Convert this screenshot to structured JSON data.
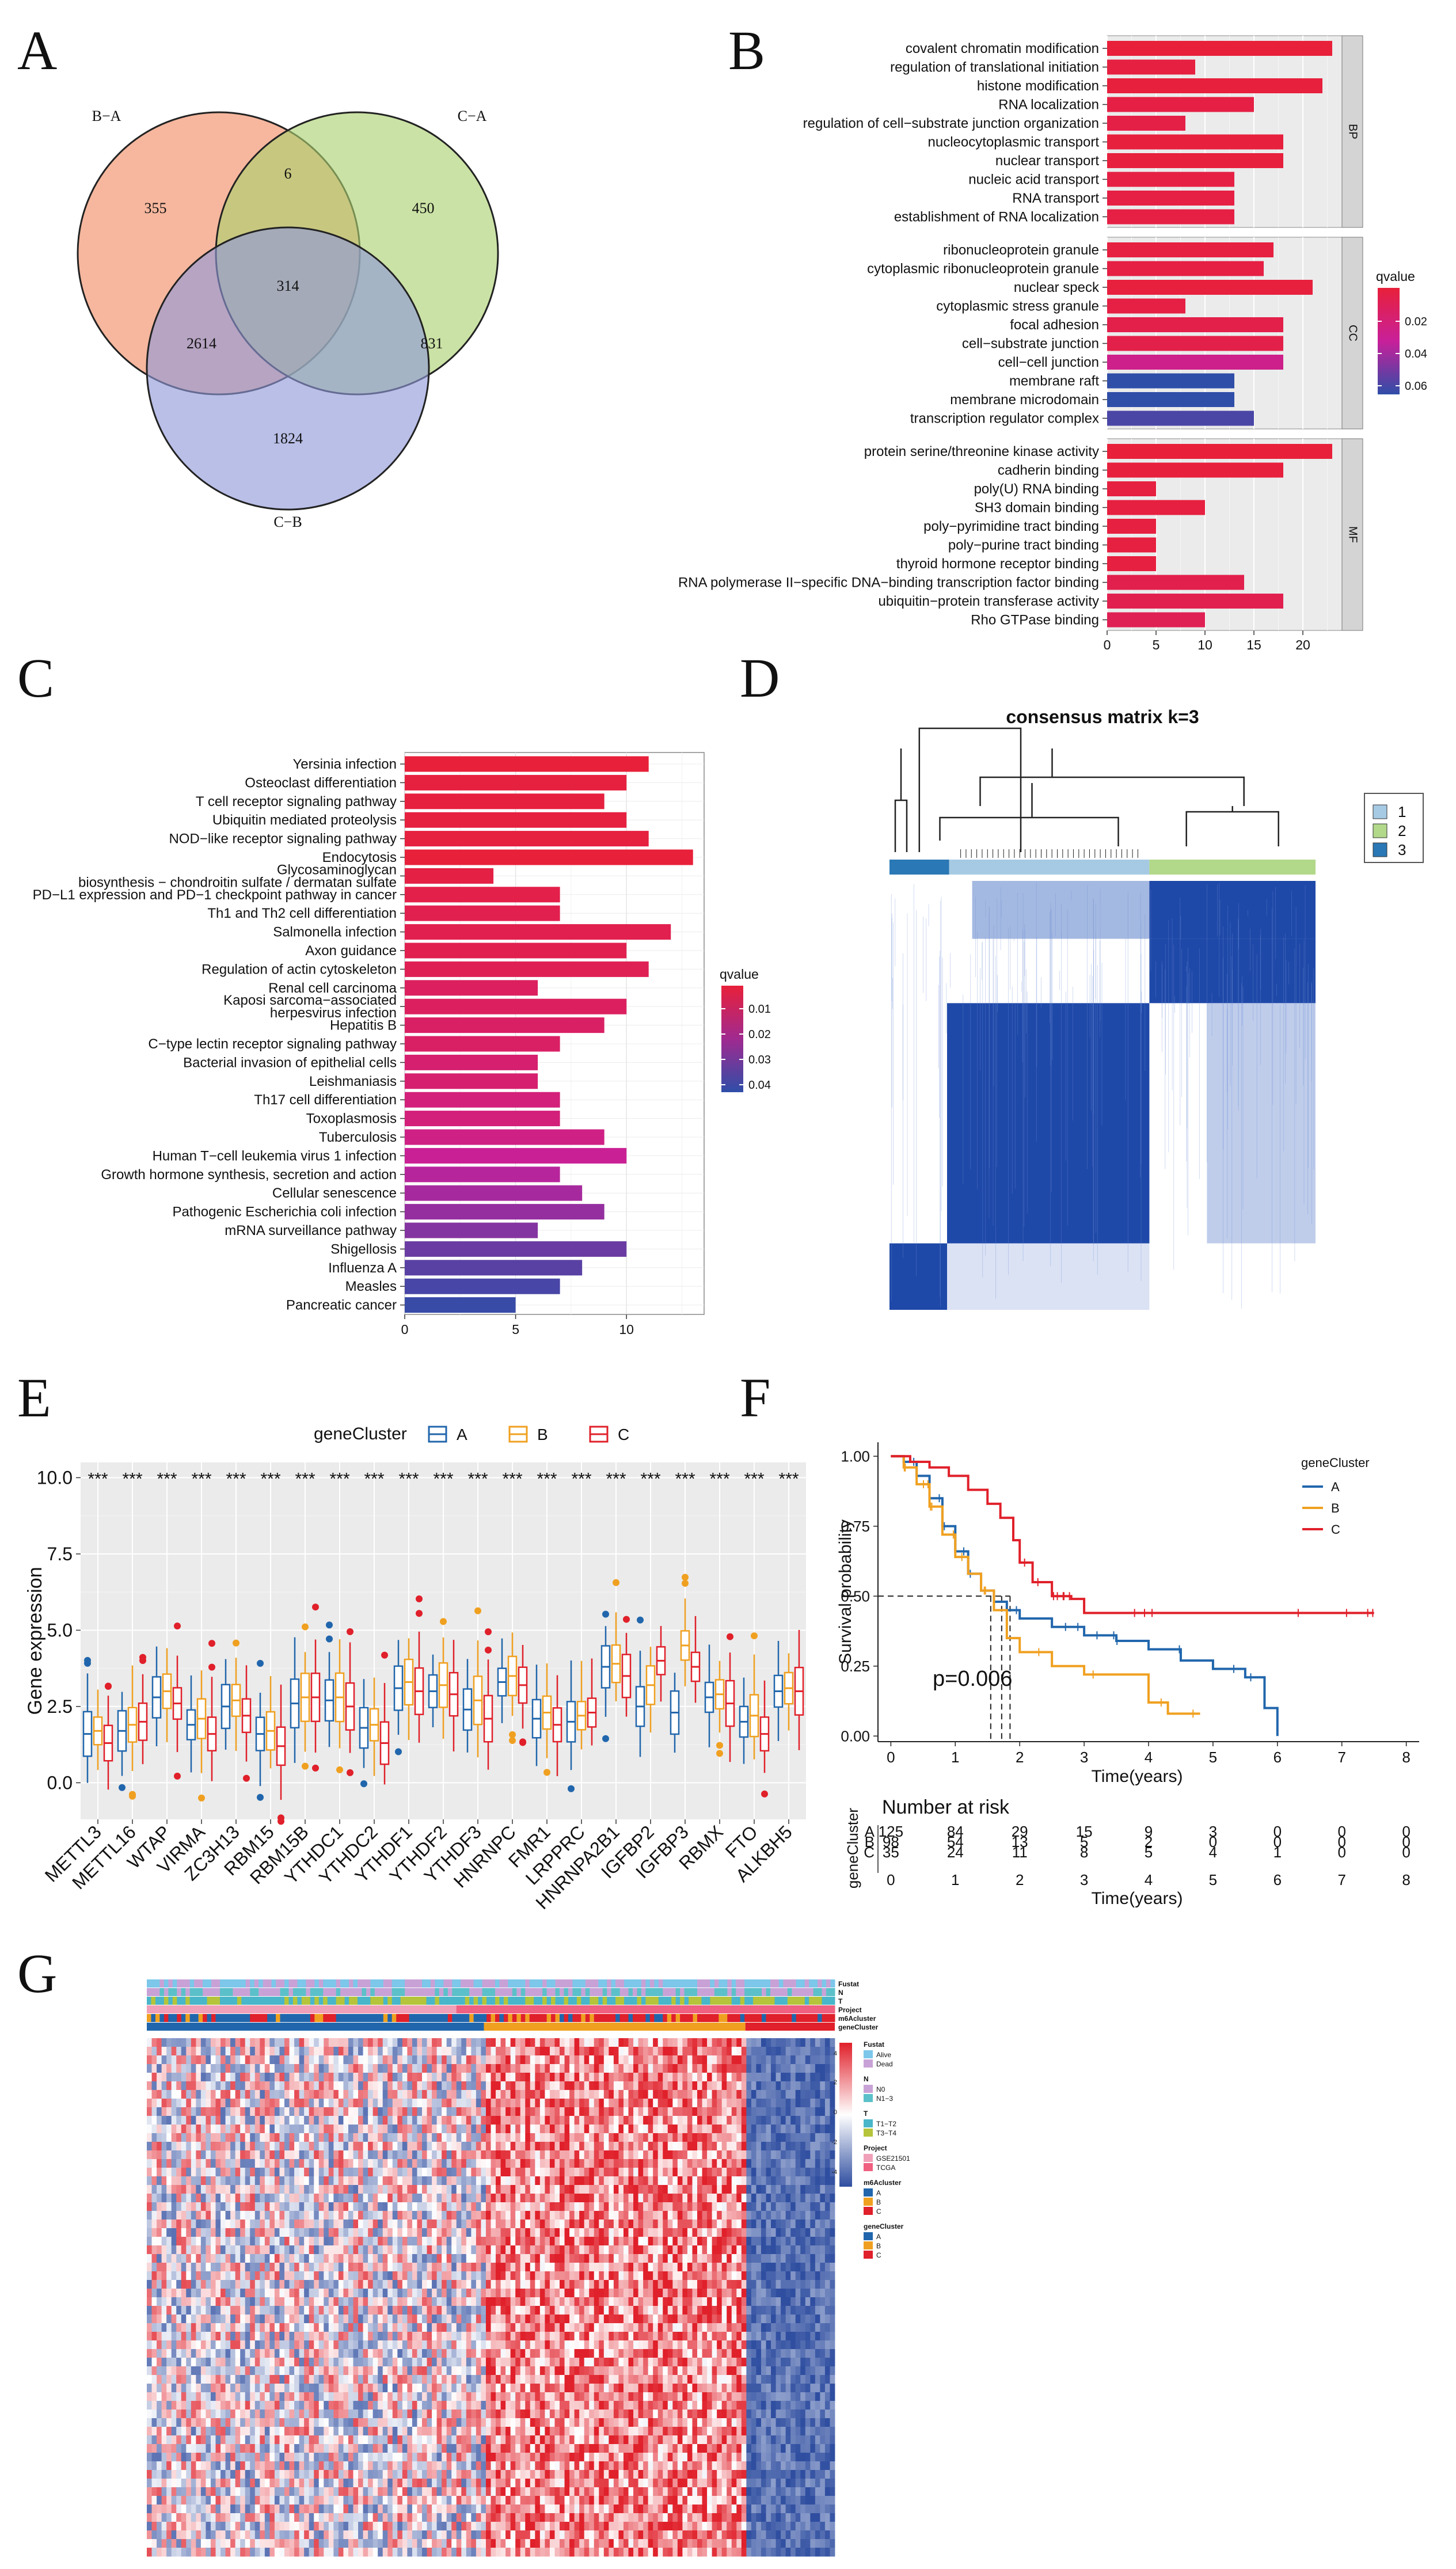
{
  "panel_labels": [
    "A",
    "B",
    "C",
    "D",
    "E",
    "F",
    "G"
  ],
  "chart_data": [
    {
      "id": "A",
      "type": "venn",
      "sets": [
        {
          "name": "B−A",
          "color": "#f08a62"
        },
        {
          "name": "C−A",
          "color": "#a9d16e"
        },
        {
          "name": "C−B",
          "color": "#8e97d8"
        }
      ],
      "regions": [
        {
          "sets": [
            "B-A"
          ],
          "value": 355
        },
        {
          "sets": [
            "C-A"
          ],
          "value": 450
        },
        {
          "sets": [
            "C-B"
          ],
          "value": 1824
        },
        {
          "sets": [
            "B-A",
            "C-A"
          ],
          "value": 6
        },
        {
          "sets": [
            "B-A",
            "C-B"
          ],
          "value": 2614
        },
        {
          "sets": [
            "C-A",
            "C-B"
          ],
          "value": 831
        },
        {
          "sets": [
            "B-A",
            "C-A",
            "C-B"
          ],
          "value": 314
        }
      ]
    },
    {
      "id": "B",
      "type": "bar",
      "orientation": "horizontal",
      "xlim": [
        0,
        24
      ],
      "xticks": [
        "0",
        "5",
        "10",
        "15",
        "20"
      ],
      "legend": {
        "title": "qvalue",
        "ticks": [
          "0.02",
          "0.04",
          "0.06"
        ],
        "position": "right"
      },
      "facets": [
        {
          "name": "BP",
          "terms": [
            "covalent chromatin modification",
            "regulation of translational initiation",
            "histone modification",
            "RNA localization",
            "regulation of cell−substrate junction organization",
            "nucleocytoplasmic transport",
            "nuclear transport",
            "nucleic acid transport",
            "RNA transport",
            "establishment of RNA localization"
          ],
          "values": [
            23,
            9,
            22,
            15,
            8,
            18,
            18,
            13,
            13,
            13
          ],
          "qvalues": [
            0.01,
            0.012,
            0.011,
            0.013,
            0.014,
            0.011,
            0.011,
            0.013,
            0.013,
            0.013
          ]
        },
        {
          "name": "CC",
          "terms": [
            "ribonucleoprotein granule",
            "cytoplasmic ribonucleoprotein granule",
            "nuclear speck",
            "cytoplasmic stress granule",
            "focal adhesion",
            "cell−substrate junction",
            "cell−cell junction",
            "membrane raft",
            "membrane microdomain",
            "transcription regulator complex"
          ],
          "values": [
            17,
            16,
            21,
            8,
            18,
            18,
            18,
            13,
            13,
            15
          ],
          "qvalues": [
            0.012,
            0.013,
            0.011,
            0.013,
            0.015,
            0.015,
            0.035,
            0.07,
            0.07,
            0.065
          ]
        },
        {
          "name": "MF",
          "terms": [
            "protein serine/threonine kinase activity",
            "cadherin binding",
            "poly(U) RNA binding",
            "SH3 domain binding",
            "poly−pyrimidine tract binding",
            "poly−purine tract binding",
            "thyroid hormone receptor binding",
            "RNA polymerase II−specific DNA−binding transcription factor binding",
            "ubiquitin−protein transferase activity",
            "Rho GTPase binding"
          ],
          "values": [
            23,
            18,
            5,
            10,
            5,
            5,
            5,
            14,
            18,
            10
          ],
          "qvalues": [
            0.01,
            0.011,
            0.012,
            0.012,
            0.012,
            0.012,
            0.012,
            0.016,
            0.017,
            0.018
          ]
        }
      ]
    },
    {
      "id": "C",
      "type": "bar",
      "orientation": "horizontal",
      "xlim": [
        0,
        13.5
      ],
      "xticks": [
        "0",
        "5",
        "10"
      ],
      "legend": {
        "title": "qvalue",
        "ticks": [
          "0.01",
          "0.02",
          "0.03",
          "0.04"
        ],
        "position": "right"
      },
      "terms": [
        "Yersinia infection",
        "Osteoclast differentiation",
        "T cell receptor signaling pathway",
        "Ubiquitin mediated proteolysis",
        "NOD−like receptor signaling pathway",
        "Endocytosis",
        "Glycosaminoglycan biosynthesis − chondroitin sulfate / dermatan sulfate",
        "PD−L1 expression and PD−1 checkpoint pathway in cancer",
        "Th1 and Th2 cell differentiation",
        "Salmonella infection",
        "Axon guidance",
        "Regulation of actin cytoskeleton",
        "Renal cell carcinoma",
        "Kaposi sarcoma−associated herpesvirus infection",
        "Hepatitis B",
        "C−type lectin receptor signaling pathway",
        "Bacterial invasion of epithelial cells",
        "Leishmaniasis",
        "Th17 cell differentiation",
        "Toxoplasmosis",
        "Tuberculosis",
        "Human T−cell leukemia virus 1 infection",
        "Growth hormone synthesis, secretion and action",
        "Cellular senescence",
        "Pathogenic Escherichia coli infection",
        "mRNA surveillance pathway",
        "Shigellosis",
        "Influenza A",
        "Measles",
        "Pancreatic cancer"
      ],
      "labels_line1": [
        "Yersinia infection",
        "Osteoclast differentiation",
        "T cell receptor signaling pathway",
        "Ubiquitin mediated proteolysis",
        "NOD−like receptor signaling pathway",
        "Endocytosis",
        "Glycosaminoglycan",
        "PD−L1 expression and PD−1 checkpoint pathway in cancer",
        "Th1 and Th2 cell differentiation",
        "Salmonella infection",
        "Axon guidance",
        "Regulation of actin cytoskeleton",
        "Renal cell carcinoma",
        "Kaposi sarcoma−associated",
        "Hepatitis B",
        "C−type lectin receptor signaling pathway",
        "Bacterial invasion of epithelial cells",
        "Leishmaniasis",
        "Th17 cell differentiation",
        "Toxoplasmosis",
        "Tuberculosis",
        "Human T−cell leukemia virus 1 infection",
        "Growth hormone synthesis, secretion and action",
        "Cellular senescence",
        "Pathogenic Escherichia coli infection",
        "mRNA surveillance pathway",
        "Shigellosis",
        "Influenza A",
        "Measles",
        "Pancreatic cancer"
      ],
      "labels_line2": [
        "",
        "",
        "",
        "",
        "",
        "",
        "biosynthesis − chondroitin sulfate / dermatan sulfate",
        "",
        "",
        "",
        "",
        "",
        "",
        "herpesvirus infection",
        "",
        "",
        "",
        "",
        "",
        "",
        "",
        "",
        "",
        "",
        "",
        "",
        "",
        "",
        "",
        ""
      ],
      "values": [
        11,
        10,
        9,
        10,
        11,
        13,
        4,
        7,
        7,
        12,
        10,
        11,
        6,
        10,
        9,
        7,
        6,
        6,
        7,
        7,
        9,
        10,
        7,
        8,
        9,
        6,
        10,
        8,
        7,
        5
      ],
      "qvalues": [
        0.008,
        0.009,
        0.009,
        0.009,
        0.009,
        0.008,
        0.01,
        0.011,
        0.012,
        0.012,
        0.012,
        0.013,
        0.015,
        0.015,
        0.016,
        0.016,
        0.018,
        0.018,
        0.02,
        0.02,
        0.022,
        0.025,
        0.028,
        0.03,
        0.032,
        0.034,
        0.037,
        0.039,
        0.041,
        0.043
      ]
    },
    {
      "id": "D",
      "type": "heatmap",
      "title": "consensus matrix k=3",
      "legend": [
        {
          "label": "1",
          "color": "#a6cae3"
        },
        {
          "label": "2",
          "color": "#b2d88a"
        },
        {
          "label": "3",
          "color": "#2a78b5"
        }
      ],
      "cluster_fractions": [
        {
          "cluster": "3",
          "fraction": 0.14
        },
        {
          "cluster": "1",
          "fraction": 0.47
        },
        {
          "cluster": "2",
          "fraction": 0.39
        }
      ]
    },
    {
      "id": "E",
      "type": "box",
      "legend_title": "geneCluster",
      "groups": [
        {
          "name": "A",
          "color": "#2166ac"
        },
        {
          "name": "B",
          "color": "#f0a020"
        },
        {
          "name": "C",
          "color": "#e0202a"
        }
      ],
      "ylabel": "Gene expression",
      "ylim": [
        -1.2,
        10.5
      ],
      "yticks": [
        "0.0",
        "2.5",
        "5.0",
        "7.5",
        "10.0"
      ],
      "significance": "***",
      "categories": [
        "METTL3",
        "METTL16",
        "WTAP",
        "VIRMA",
        "ZC3H13",
        "RBM15",
        "RBM15B",
        "YTHDC1",
        "YTHDC2",
        "YTHDF1",
        "YTHDF2",
        "YTHDF3",
        "HNRNPC",
        "FMR1",
        "LRPPRC",
        "HNRNPA2B1",
        "IGFBP2",
        "IGFBP3",
        "RBMX",
        "FTO",
        "ALKBH5"
      ],
      "medians": {
        "A": [
          1.6,
          1.7,
          2.8,
          1.9,
          2.5,
          1.6,
          2.6,
          2.7,
          1.8,
          3.1,
          3.0,
          2.4,
          3.3,
          2.1,
          2.0,
          3.8,
          2.5,
          2.3,
          2.8,
          2.0,
          3.0
        ],
        "B": [
          1.7,
          1.9,
          3.0,
          2.1,
          2.7,
          1.7,
          2.8,
          2.8,
          1.9,
          3.3,
          3.2,
          2.7,
          3.5,
          2.3,
          2.2,
          3.9,
          3.2,
          4.5,
          2.9,
          2.2,
          3.1
        ],
        "C": [
          1.3,
          2.0,
          2.6,
          1.6,
          2.2,
          1.2,
          2.8,
          2.5,
          1.3,
          3.0,
          2.9,
          2.1,
          3.2,
          1.9,
          2.3,
          3.5,
          4.0,
          3.8,
          2.6,
          1.6,
          3.0
        ]
      }
    },
    {
      "id": "F",
      "type": "line",
      "subtype": "kaplan-meier",
      "legend_title": "geneCluster",
      "ylabel": "Survival probability",
      "xlabel": "Time(years)",
      "xlim": [
        -0.2,
        8.2
      ],
      "ylim": [
        -0.02,
        1.05
      ],
      "xticks": [
        "0",
        "1",
        "2",
        "3",
        "4",
        "5",
        "6",
        "7",
        "8"
      ],
      "yticks": [
        "0.00",
        "0.25",
        "0.50",
        "0.75",
        "1.00"
      ],
      "pvalue": "p=0.006",
      "series": [
        {
          "name": "A",
          "color": "#2166ac",
          "x": [
            0,
            0.2,
            0.4,
            0.6,
            0.8,
            1.0,
            1.2,
            1.4,
            1.6,
            1.8,
            2.0,
            2.5,
            3.0,
            3.5,
            4.0,
            4.5,
            5.0,
            5.5,
            5.8,
            6.0
          ],
          "y": [
            1.0,
            0.98,
            0.93,
            0.85,
            0.75,
            0.66,
            0.58,
            0.52,
            0.48,
            0.45,
            0.42,
            0.39,
            0.36,
            0.34,
            0.31,
            0.27,
            0.24,
            0.21,
            0.1,
            0.0
          ]
        },
        {
          "name": "B",
          "color": "#f0a020",
          "x": [
            0,
            0.2,
            0.4,
            0.6,
            0.8,
            1.0,
            1.2,
            1.4,
            1.6,
            1.8,
            2.0,
            2.5,
            3.0,
            3.5,
            4.0,
            4.3,
            4.8
          ],
          "y": [
            1.0,
            0.96,
            0.9,
            0.82,
            0.72,
            0.64,
            0.58,
            0.52,
            0.45,
            0.35,
            0.3,
            0.25,
            0.22,
            0.22,
            0.12,
            0.08,
            0.08
          ]
        },
        {
          "name": "C",
          "color": "#e0202a",
          "x": [
            0,
            0.3,
            0.6,
            0.9,
            1.2,
            1.5,
            1.7,
            1.9,
            2.0,
            2.2,
            2.5,
            2.8,
            3.0,
            4.0,
            5.0,
            6.0,
            7.0,
            7.5
          ],
          "y": [
            1.0,
            0.98,
            0.96,
            0.93,
            0.88,
            0.83,
            0.78,
            0.7,
            0.62,
            0.55,
            0.5,
            0.49,
            0.44,
            0.44,
            0.44,
            0.44,
            0.44,
            0.44
          ]
        }
      ],
      "risk_table": {
        "title": "Number at risk",
        "ylabel": "geneCluster",
        "xlabel": "Time(years)",
        "rows": [
          {
            "name": "A",
            "color": "#2166ac",
            "counts": [
              "125",
              "84",
              "29",
              "15",
              "9",
              "3",
              "0",
              "0",
              "0"
            ]
          },
          {
            "name": "B",
            "color": "#f0a020",
            "counts": [
              "98",
              "54",
              "13",
              "5",
              "2",
              "0",
              "0",
              "0",
              "0"
            ]
          },
          {
            "name": "C",
            "color": "#e0202a",
            "counts": [
              "35",
              "24",
              "11",
              "8",
              "5",
              "4",
              "1",
              "0",
              "0"
            ]
          }
        ]
      }
    },
    {
      "id": "G",
      "type": "heatmap",
      "annotation_tracks": [
        "Fustat",
        "N",
        "T",
        "Project",
        "m6Acluster",
        "geneCluster"
      ],
      "scale_ticks": [
        "4",
        "2",
        "0",
        "-2",
        "-4"
      ],
      "scale_colors": [
        "#e0202a",
        "#ffffff",
        "#2f4ea0"
      ],
      "cluster_fractions": [
        {
          "cluster": "A",
          "fraction": 0.49
        },
        {
          "cluster": "B",
          "fraction": 0.38
        },
        {
          "cluster": "C",
          "fraction": 0.13
        }
      ],
      "legends": [
        {
          "title": "Fustat",
          "items": [
            {
              "label": "Alive",
              "color": "#7cc7ea"
            },
            {
              "label": "Dead",
              "color": "#c8a2d6"
            }
          ]
        },
        {
          "title": "N",
          "items": [
            {
              "label": "N0",
              "color": "#c8a2d6"
            },
            {
              "label": "N1−3",
              "color": "#5bc0c9"
            }
          ]
        },
        {
          "title": "T",
          "items": [
            {
              "label": "T1−T2",
              "color": "#49b6c9"
            },
            {
              "label": "T3−T4",
              "color": "#b5c43a"
            }
          ]
        },
        {
          "title": "Project",
          "items": [
            {
              "label": "GSE21501",
              "color": "#f0a0b8"
            },
            {
              "label": "TCGA",
              "color": "#f06080"
            }
          ]
        },
        {
          "title": "m6Acluster",
          "items": [
            {
              "label": "A",
              "color": "#2166ac"
            },
            {
              "label": "B",
              "color": "#f0a020"
            },
            {
              "label": "C",
              "color": "#e0202a"
            }
          ]
        },
        {
          "title": "geneCluster",
          "items": [
            {
              "label": "A",
              "color": "#2166ac"
            },
            {
              "label": "B",
              "color": "#f0a020"
            },
            {
              "label": "C",
              "color": "#e0202a"
            }
          ]
        }
      ]
    }
  ]
}
